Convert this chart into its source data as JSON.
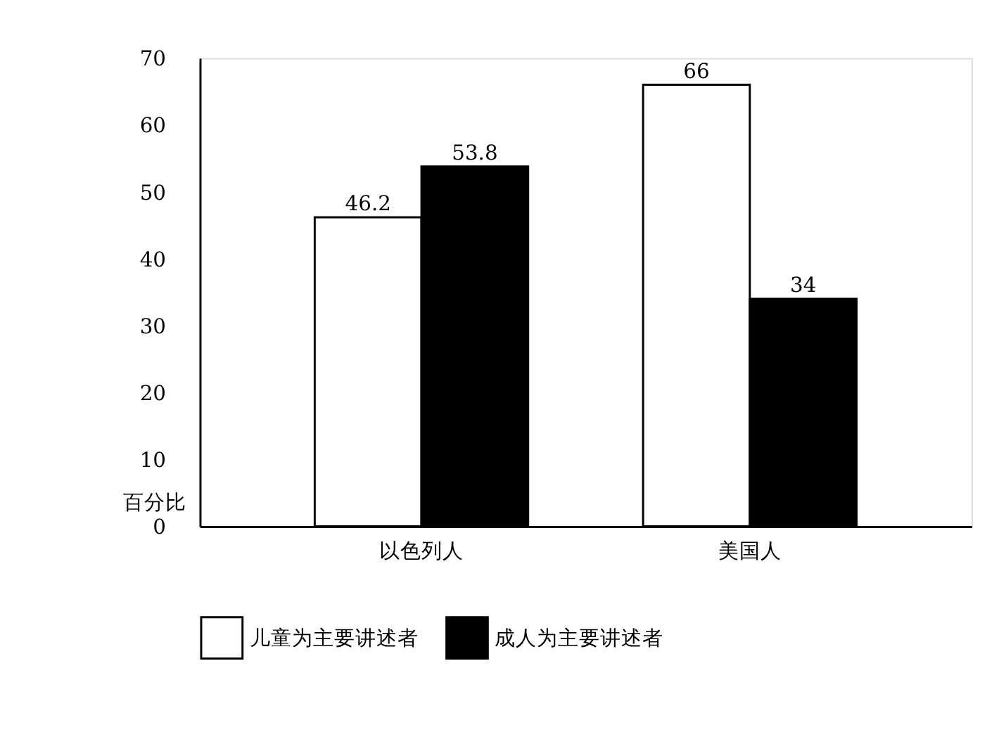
{
  "chart_data": {
    "type": "bar",
    "ylabel": "百分比",
    "categories": [
      "以色列人",
      "美国人"
    ],
    "series": [
      {
        "name": "儿童为主要讲述者",
        "color": "#ffffff",
        "values": [
          46.2,
          66
        ]
      },
      {
        "name": "成人为主要讲述者",
        "color": "#000000",
        "values": [
          53.8,
          34
        ]
      }
    ],
    "ylim": [
      0,
      70
    ],
    "yticks": [
      0,
      10,
      20,
      30,
      40,
      50,
      60,
      70
    ],
    "data_labels": true,
    "grid": false,
    "legend": "bottom"
  }
}
